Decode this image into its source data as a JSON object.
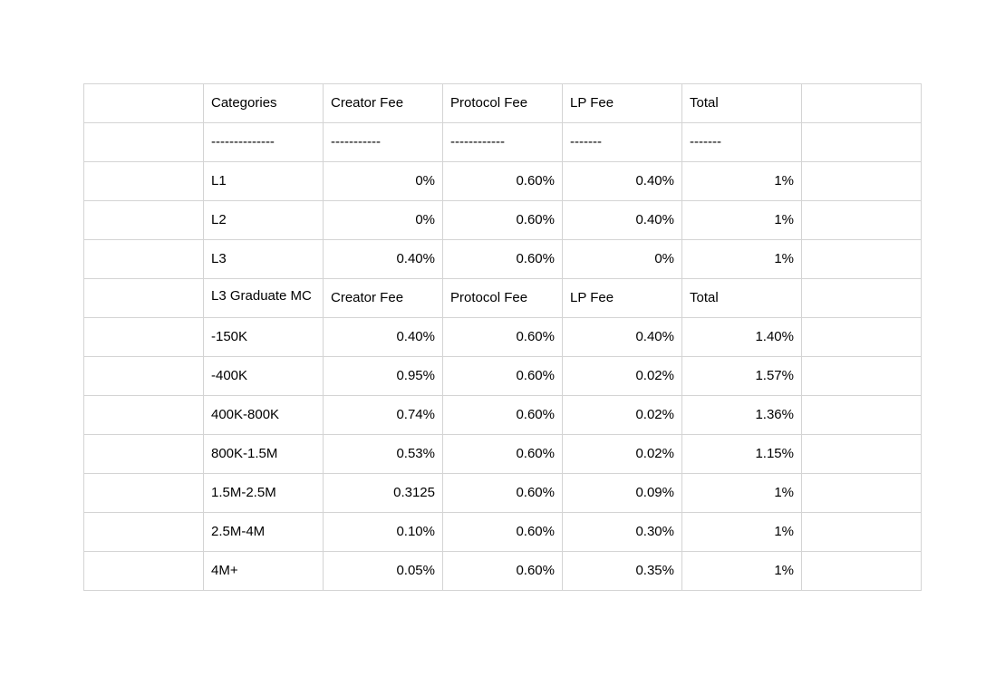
{
  "table": {
    "header": [
      "Categories",
      "Creator Fee",
      "Protocol Fee",
      "LP Fee",
      "Total"
    ],
    "separator": [
      "--------------",
      "-----------",
      "------------",
      "-------",
      "-------"
    ],
    "rows": [
      [
        "L1",
        "0%",
        "0.60%",
        "0.40%",
        "1%"
      ],
      [
        "L2",
        "0%",
        "0.60%",
        "0.40%",
        "1%"
      ],
      [
        "L3",
        "0.40%",
        "0.60%",
        "0%",
        "1%"
      ]
    ],
    "graduate_header": [
      "L3 Graduate MC",
      "Creator Fee",
      "Protocol Fee",
      "LP Fee",
      "Total"
    ],
    "graduate_rows": [
      [
        "-150K",
        "0.40%",
        "0.60%",
        "0.40%",
        "1.40%"
      ],
      [
        "-400K",
        "0.95%",
        "0.60%",
        "0.02%",
        "1.57%"
      ],
      [
        "400K-800K",
        "0.74%",
        "0.60%",
        "0.02%",
        "1.36%"
      ],
      [
        "800K-1.5M",
        "0.53%",
        "0.60%",
        "0.02%",
        "1.15%"
      ],
      [
        "1.5M-2.5M",
        "0.3125",
        "0.60%",
        "0.09%",
        "1%"
      ],
      [
        "2.5M-4M",
        "0.10%",
        "0.60%",
        "0.30%",
        "1%"
      ],
      [
        "4M+",
        "0.05%",
        "0.60%",
        "0.35%",
        "1%"
      ]
    ]
  }
}
